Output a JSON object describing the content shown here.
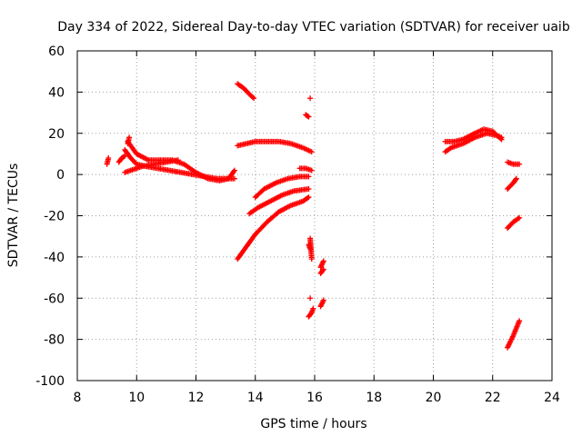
{
  "chart_data": {
    "type": "scatter",
    "title": "Day 334 of 2022, Sidereal Day-to-day VTEC variation (SDTVAR) for receiver uaib",
    "xlabel": "GPS time / hours",
    "ylabel": "SDTVAR / TECUs",
    "xlim": [
      8,
      24
    ],
    "ylim": [
      -100,
      60
    ],
    "x_ticks": [
      "8",
      "10",
      "12",
      "14",
      "16",
      "18",
      "20",
      "22",
      "24"
    ],
    "y_ticks": [
      "60",
      "40",
      "20",
      "0",
      "-20",
      "-40",
      "-60",
      "-80",
      "-100"
    ],
    "grid": true,
    "marker": "+",
    "color": "#ff0000",
    "segments": [
      {
        "x": [
          9.0,
          9.05
        ],
        "y": [
          5,
          8
        ]
      },
      {
        "x": [
          9.4,
          9.5,
          9.6
        ],
        "y": [
          6,
          8,
          9
        ]
      },
      {
        "x": [
          9.6,
          9.8,
          10.0,
          10.3,
          10.7,
          11.1,
          11.5,
          11.9,
          12.3,
          12.7,
          13.0,
          13.3
        ],
        "y": [
          12,
          8,
          5,
          4,
          3,
          2,
          1,
          0,
          -1,
          -2,
          -2,
          -2
        ]
      },
      {
        "x": [
          9.7,
          10.0,
          10.4,
          10.8,
          11.2,
          11.6,
          12.0,
          12.4,
          12.8,
          13.1,
          13.3
        ],
        "y": [
          16,
          10,
          7,
          7,
          7,
          5,
          1,
          -2,
          -3,
          -2,
          2
        ]
      },
      {
        "x": [
          9.6,
          9.8,
          10.2,
          10.6,
          11.0,
          11.4
        ],
        "y": [
          1,
          2,
          4,
          5,
          6,
          7
        ]
      },
      {
        "x": [
          9.7,
          9.75
        ],
        "y": [
          15,
          18
        ]
      },
      {
        "x": [
          13.4,
          13.6,
          13.8,
          13.95
        ],
        "y": [
          44,
          42,
          39,
          37
        ]
      },
      {
        "x": [
          13.4,
          13.7,
          14.0,
          14.4,
          14.8,
          15.2,
          15.6,
          15.9
        ],
        "y": [
          14,
          15,
          16,
          16,
          16,
          15,
          13,
          11
        ]
      },
      {
        "x": [
          14.0,
          14.3,
          14.7,
          15.1,
          15.5,
          15.8
        ],
        "y": [
          -11,
          -7,
          -4,
          -2,
          -1,
          -1
        ]
      },
      {
        "x": [
          13.8,
          14.1,
          14.5,
          14.9,
          15.3,
          15.8
        ],
        "y": [
          -19,
          -16,
          -13,
          -10,
          -8,
          -7
        ]
      },
      {
        "x": [
          13.4,
          13.7,
          14.0,
          14.4,
          14.8,
          15.2,
          15.6,
          15.8
        ],
        "y": [
          -41,
          -35,
          -29,
          -23,
          -18,
          -15,
          -13,
          -11
        ]
      },
      {
        "x": [
          15.5,
          15.7,
          15.9
        ],
        "y": [
          3,
          3,
          2
        ]
      },
      {
        "x": [
          15.7,
          15.8
        ],
        "y": [
          29,
          28
        ]
      },
      {
        "x": [
          15.85
        ],
        "y": [
          37
        ]
      },
      {
        "x": [
          15.85,
          15.9
        ],
        "y": [
          -31,
          -41
        ]
      },
      {
        "x": [
          15.8,
          15.85
        ],
        "y": [
          -34,
          -36
        ]
      },
      {
        "x": [
          15.85
        ],
        "y": [
          -60
        ]
      },
      {
        "x": [
          15.8,
          15.9,
          15.95
        ],
        "y": [
          -69,
          -67,
          -65
        ]
      },
      {
        "x": [
          16.2,
          16.3
        ],
        "y": [
          -45,
          -42
        ]
      },
      {
        "x": [
          16.2,
          16.3
        ],
        "y": [
          -48,
          -46
        ]
      },
      {
        "x": [
          16.2,
          16.3
        ],
        "y": [
          -64,
          -61
        ]
      },
      {
        "x": [
          20.4,
          20.7,
          21.0,
          21.4,
          21.7,
          22.0,
          22.3
        ],
        "y": [
          16,
          16,
          17,
          20,
          22,
          21,
          17
        ]
      },
      {
        "x": [
          20.4,
          20.6,
          21.0,
          21.4,
          21.8,
          22.1,
          22.3
        ],
        "y": [
          11,
          13,
          15,
          18,
          20,
          19,
          18
        ]
      },
      {
        "x": [
          22.5,
          22.7,
          22.9
        ],
        "y": [
          6,
          5,
          5
        ]
      },
      {
        "x": [
          22.5,
          22.7,
          22.8
        ],
        "y": [
          -7,
          -4,
          -2
        ]
      },
      {
        "x": [
          22.5,
          22.7,
          22.9
        ],
        "y": [
          -26,
          -23,
          -21
        ]
      },
      {
        "x": [
          22.5,
          22.7,
          22.9
        ],
        "y": [
          -84,
          -78,
          -71
        ]
      }
    ]
  }
}
